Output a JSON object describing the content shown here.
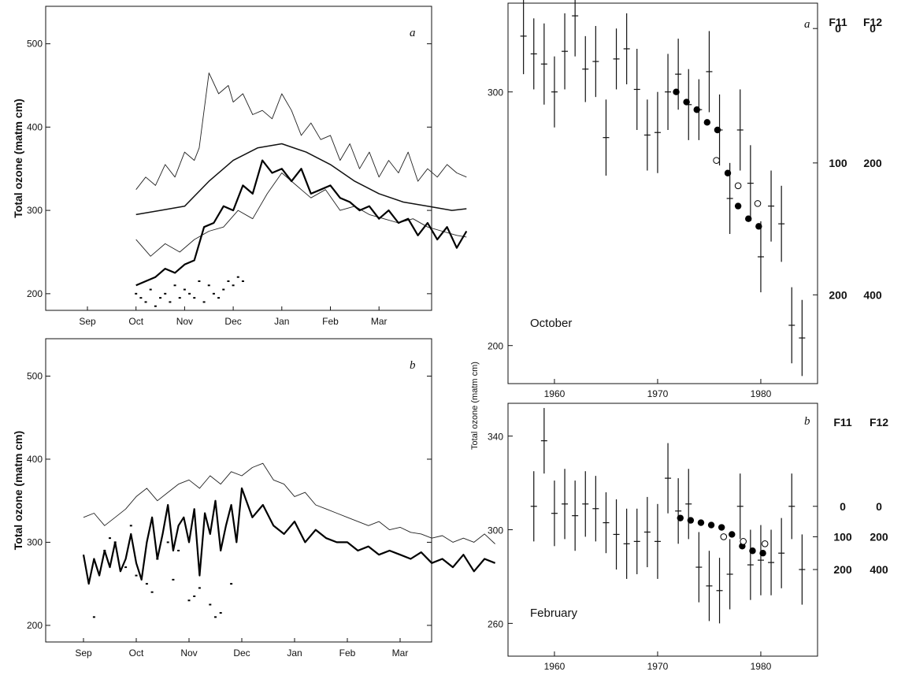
{
  "chart_data": [
    {
      "panel": "a",
      "type": "line",
      "ylabel": "Total ozone (matm cm)",
      "ylim": [
        180,
        545
      ],
      "yticks": [
        200,
        300,
        400,
        500
      ],
      "months": [
        "Sep",
        "Oct",
        "Nov",
        "Dec",
        "Jan",
        "Feb",
        "Mar"
      ],
      "series": [
        {
          "style": "thin",
          "x": [
            1.0,
            1.2,
            1.4,
            1.6,
            1.8,
            2.0,
            2.2,
            2.3,
            2.5,
            2.7,
            2.9,
            3.0,
            3.2,
            3.4,
            3.6,
            3.8,
            4.0,
            4.2,
            4.4,
            4.6,
            4.8,
            5.0,
            5.2,
            5.4,
            5.6,
            5.8,
            6.0,
            6.2,
            6.4,
            6.6,
            6.8,
            7.0,
            7.2,
            7.4,
            7.6,
            7.8
          ],
          "y": [
            325,
            340,
            330,
            355,
            340,
            370,
            360,
            375,
            465,
            440,
            450,
            430,
            440,
            415,
            420,
            410,
            440,
            420,
            390,
            405,
            385,
            390,
            360,
            380,
            350,
            370,
            340,
            360,
            345,
            370,
            335,
            350,
            340,
            355,
            345,
            340
          ]
        },
        {
          "style": "medium",
          "x": [
            1.0,
            1.5,
            2.0,
            2.5,
            3.0,
            3.5,
            4.0,
            4.5,
            5.0,
            5.5,
            6.0,
            6.5,
            7.0,
            7.5,
            7.8
          ],
          "y": [
            295,
            300,
            305,
            335,
            360,
            375,
            380,
            370,
            355,
            335,
            320,
            310,
            305,
            300,
            302
          ]
        },
        {
          "style": "thin",
          "x": [
            1.0,
            1.3,
            1.6,
            1.9,
            2.2,
            2.5,
            2.8,
            3.1,
            3.4,
            3.7,
            4.0,
            4.3,
            4.6,
            4.9,
            5.2,
            5.5,
            5.8,
            6.1,
            6.4,
            6.7,
            7.0,
            7.3,
            7.6,
            7.8
          ],
          "y": [
            265,
            245,
            260,
            250,
            265,
            275,
            280,
            300,
            290,
            320,
            345,
            330,
            315,
            325,
            300,
            305,
            295,
            290,
            285,
            290,
            280,
            275,
            270,
            268
          ]
        },
        {
          "style": "thick",
          "x": [
            1.0,
            1.2,
            1.4,
            1.6,
            1.8,
            2.0,
            2.2,
            2.4,
            2.6,
            2.8,
            3.0,
            3.2,
            3.4,
            3.6,
            3.8,
            4.0,
            4.2,
            4.4,
            4.6,
            4.8,
            5.0,
            5.2,
            5.4,
            5.6,
            5.8,
            6.0,
            6.2,
            6.4,
            6.6,
            6.8,
            7.0,
            7.2,
            7.4,
            7.6,
            7.8
          ],
          "y": [
            210,
            215,
            220,
            230,
            225,
            235,
            240,
            280,
            285,
            305,
            300,
            330,
            320,
            360,
            345,
            350,
            335,
            350,
            320,
            325,
            330,
            315,
            310,
            300,
            305,
            290,
            300,
            285,
            290,
            270,
            285,
            265,
            280,
            255,
            275
          ]
        },
        {
          "style": "dots",
          "x": [
            1.0,
            1.1,
            1.2,
            1.3,
            1.4,
            1.5,
            1.6,
            1.7,
            1.8,
            1.9,
            2.0,
            2.1,
            2.2,
            2.3,
            2.4,
            2.5,
            2.6,
            2.7,
            2.8,
            2.9,
            3.0,
            3.1,
            3.2
          ],
          "y": [
            200,
            195,
            190,
            205,
            185,
            195,
            200,
            190,
            210,
            195,
            205,
            200,
            195,
            215,
            190,
            210,
            200,
            195,
            205,
            215,
            210,
            220,
            215
          ]
        }
      ]
    },
    {
      "panel": "b",
      "type": "line",
      "ylabel": "Total ozone (matm cm)",
      "ylim": [
        180,
        545
      ],
      "yticks": [
        200,
        300,
        400,
        500
      ],
      "months": [
        "Sep",
        "Oct",
        "Nov",
        "Dec",
        "Jan",
        "Feb",
        "Mar"
      ],
      "series": [
        {
          "style": "thin",
          "x": [
            0.0,
            0.2,
            0.4,
            0.6,
            0.8,
            1.0,
            1.2,
            1.4,
            1.6,
            1.8,
            2.0,
            2.2,
            2.4,
            2.6,
            2.8,
            3.0,
            3.2,
            3.4,
            3.6,
            3.8,
            4.0,
            4.2,
            4.4,
            4.6,
            4.8,
            5.0,
            5.2,
            5.4,
            5.6,
            5.8,
            6.0,
            6.2,
            6.4,
            6.6,
            6.8,
            7.0,
            7.2,
            7.4,
            7.6,
            7.8
          ],
          "y": [
            330,
            335,
            320,
            330,
            340,
            355,
            365,
            350,
            360,
            370,
            375,
            365,
            380,
            370,
            385,
            380,
            390,
            395,
            375,
            370,
            355,
            360,
            345,
            340,
            335,
            330,
            325,
            320,
            325,
            315,
            318,
            312,
            310,
            305,
            308,
            300,
            305,
            300,
            310,
            298
          ]
        },
        {
          "style": "thick",
          "x": [
            0.0,
            0.1,
            0.2,
            0.3,
            0.4,
            0.5,
            0.6,
            0.7,
            0.8,
            0.9,
            1.0,
            1.1,
            1.2,
            1.3,
            1.4,
            1.5,
            1.6,
            1.7,
            1.8,
            1.9,
            2.0,
            2.1,
            2.2,
            2.3,
            2.4,
            2.5,
            2.6,
            2.7,
            2.8,
            2.9,
            3.0,
            3.2,
            3.4,
            3.6,
            3.8,
            4.0,
            4.2,
            4.4,
            4.6,
            4.8,
            5.0,
            5.2,
            5.4,
            5.6,
            5.8,
            6.0,
            6.2,
            6.4,
            6.6,
            6.8,
            7.0,
            7.2,
            7.4,
            7.6,
            7.8
          ],
          "y": [
            285,
            250,
            280,
            260,
            290,
            270,
            300,
            265,
            280,
            310,
            275,
            255,
            300,
            330,
            280,
            310,
            345,
            290,
            320,
            330,
            300,
            340,
            260,
            335,
            310,
            350,
            290,
            320,
            345,
            300,
            365,
            330,
            345,
            320,
            310,
            325,
            300,
            315,
            305,
            300,
            300,
            290,
            295,
            285,
            290,
            285,
            280,
            288,
            275,
            280,
            270,
            285,
            265,
            280,
            275
          ]
        },
        {
          "style": "dots",
          "x": [
            0.2,
            0.4,
            0.6,
            0.8,
            1.0,
            1.2,
            1.4,
            1.6,
            1.8,
            2.0,
            2.2,
            2.4,
            2.6,
            2.8,
            0.5,
            0.9,
            1.3,
            1.7,
            2.1,
            2.5
          ],
          "y": [
            210,
            290,
            300,
            270,
            260,
            250,
            280,
            300,
            290,
            230,
            245,
            225,
            215,
            250,
            305,
            320,
            240,
            255,
            235,
            210
          ]
        }
      ]
    },
    {
      "panel": "a",
      "type": "scatter",
      "annotation": "October",
      "ylabel": "Total ozone (matm cm)",
      "xlim": [
        1955.5,
        1985.5
      ],
      "ylim": [
        185,
        335
      ],
      "yticks": [
        200,
        300
      ],
      "xticks": [
        1960,
        1970,
        1980
      ],
      "right_axis": {
        "headers": [
          "F11",
          "F12"
        ],
        "rows": [
          [
            "0",
            "0",
            325
          ],
          [
            "100",
            "200",
            272
          ],
          [
            "200",
            "400",
            220
          ]
        ]
      },
      "points": [
        {
          "year": 1957,
          "mean": 322,
          "err": 15
        },
        {
          "year": 1958,
          "mean": 315,
          "err": 14
        },
        {
          "year": 1959,
          "mean": 311,
          "err": 16
        },
        {
          "year": 1960,
          "mean": 300,
          "err": 14
        },
        {
          "year": 1961,
          "mean": 316,
          "err": 15
        },
        {
          "year": 1962,
          "mean": 330,
          "err": 16
        },
        {
          "year": 1963,
          "mean": 309,
          "err": 13
        },
        {
          "year": 1964,
          "mean": 312,
          "err": 14
        },
        {
          "year": 1965,
          "mean": 282,
          "err": 15
        },
        {
          "year": 1966,
          "mean": 313,
          "err": 12
        },
        {
          "year": 1967,
          "mean": 317,
          "err": 14
        },
        {
          "year": 1968,
          "mean": 301,
          "err": 16
        },
        {
          "year": 1969,
          "mean": 283,
          "err": 14
        },
        {
          "year": 1970,
          "mean": 284,
          "err": 16
        },
        {
          "year": 1971,
          "mean": 300,
          "err": 15
        },
        {
          "year": 1972,
          "mean": 307,
          "err": 14
        },
        {
          "year": 1973,
          "mean": 295,
          "err": 14
        },
        {
          "year": 1974,
          "mean": 293,
          "err": 12
        },
        {
          "year": 1975,
          "mean": 308,
          "err": 16
        },
        {
          "year": 1976,
          "mean": 285,
          "err": 14
        },
        {
          "year": 1977,
          "mean": 258,
          "err": 14
        },
        {
          "year": 1978,
          "mean": 285,
          "err": 16
        },
        {
          "year": 1979,
          "mean": 264,
          "err": 15
        },
        {
          "year": 1980,
          "mean": 235,
          "err": 14
        },
        {
          "year": 1981,
          "mean": 255,
          "err": 14
        },
        {
          "year": 1982,
          "mean": 248,
          "err": 15
        },
        {
          "year": 1983,
          "mean": 208,
          "err": 15
        },
        {
          "year": 1984,
          "mean": 203,
          "err": 15
        }
      ],
      "filled": [
        [
          1971.8,
          300
        ],
        [
          1972.8,
          296
        ],
        [
          1973.8,
          293
        ],
        [
          1974.8,
          288
        ],
        [
          1975.8,
          285
        ],
        [
          1976.8,
          268
        ],
        [
          1977.8,
          255
        ],
        [
          1978.8,
          250
        ],
        [
          1979.8,
          247
        ]
      ],
      "open": [
        [
          1975.7,
          273
        ],
        [
          1977.8,
          263
        ],
        [
          1979.7,
          256
        ]
      ]
    },
    {
      "panel": "b",
      "type": "scatter",
      "annotation": "February",
      "ylabel": "Total ozone (matm cm)",
      "xlim": [
        1955.5,
        1985.5
      ],
      "ylim": [
        246,
        354
      ],
      "yticks": [
        260,
        300,
        340
      ],
      "xticks": [
        1960,
        1970,
        1980
      ],
      "right_axis": {
        "headers": [
          "F11",
          "F12"
        ],
        "rows": [
          [
            "0",
            "0",
            310
          ],
          [
            "100",
            "200",
            297
          ],
          [
            "200",
            "400",
            283
          ]
        ]
      },
      "points": [
        {
          "year": 1958,
          "mean": 310,
          "err": 15
        },
        {
          "year": 1959,
          "mean": 338,
          "err": 14
        },
        {
          "year": 1960,
          "mean": 307,
          "err": 14
        },
        {
          "year": 1961,
          "mean": 311,
          "err": 15
        },
        {
          "year": 1962,
          "mean": 306,
          "err": 15
        },
        {
          "year": 1963,
          "mean": 311,
          "err": 14
        },
        {
          "year": 1964,
          "mean": 309,
          "err": 14
        },
        {
          "year": 1965,
          "mean": 303,
          "err": 13
        },
        {
          "year": 1966,
          "mean": 298,
          "err": 15
        },
        {
          "year": 1967,
          "mean": 294,
          "err": 15
        },
        {
          "year": 1968,
          "mean": 295,
          "err": 14
        },
        {
          "year": 1969,
          "mean": 299,
          "err": 15
        },
        {
          "year": 1970,
          "mean": 295,
          "err": 16
        },
        {
          "year": 1971,
          "mean": 322,
          "err": 15
        },
        {
          "year": 1972,
          "mean": 308,
          "err": 14
        },
        {
          "year": 1973,
          "mean": 311,
          "err": 15
        },
        {
          "year": 1974,
          "mean": 284,
          "err": 15
        },
        {
          "year": 1975,
          "mean": 276,
          "err": 15
        },
        {
          "year": 1976,
          "mean": 274,
          "err": 14
        },
        {
          "year": 1977,
          "mean": 281,
          "err": 15
        },
        {
          "year": 1978,
          "mean": 310,
          "err": 14
        },
        {
          "year": 1979,
          "mean": 285,
          "err": 15
        },
        {
          "year": 1980,
          "mean": 287,
          "err": 15
        },
        {
          "year": 1981,
          "mean": 286,
          "err": 14
        },
        {
          "year": 1982,
          "mean": 290,
          "err": 15
        },
        {
          "year": 1983,
          "mean": 310,
          "err": 14
        },
        {
          "year": 1984,
          "mean": 283,
          "err": 15
        }
      ],
      "filled": [
        [
          1972.2,
          305
        ],
        [
          1973.2,
          304
        ],
        [
          1974.2,
          303
        ],
        [
          1975.2,
          302
        ],
        [
          1976.2,
          301
        ],
        [
          1977.2,
          298
        ],
        [
          1978.2,
          293
        ],
        [
          1979.2,
          291
        ],
        [
          1980.2,
          290
        ]
      ],
      "open": [
        [
          1976.4,
          297
        ],
        [
          1978.3,
          295
        ],
        [
          1980.4,
          294
        ]
      ]
    }
  ]
}
